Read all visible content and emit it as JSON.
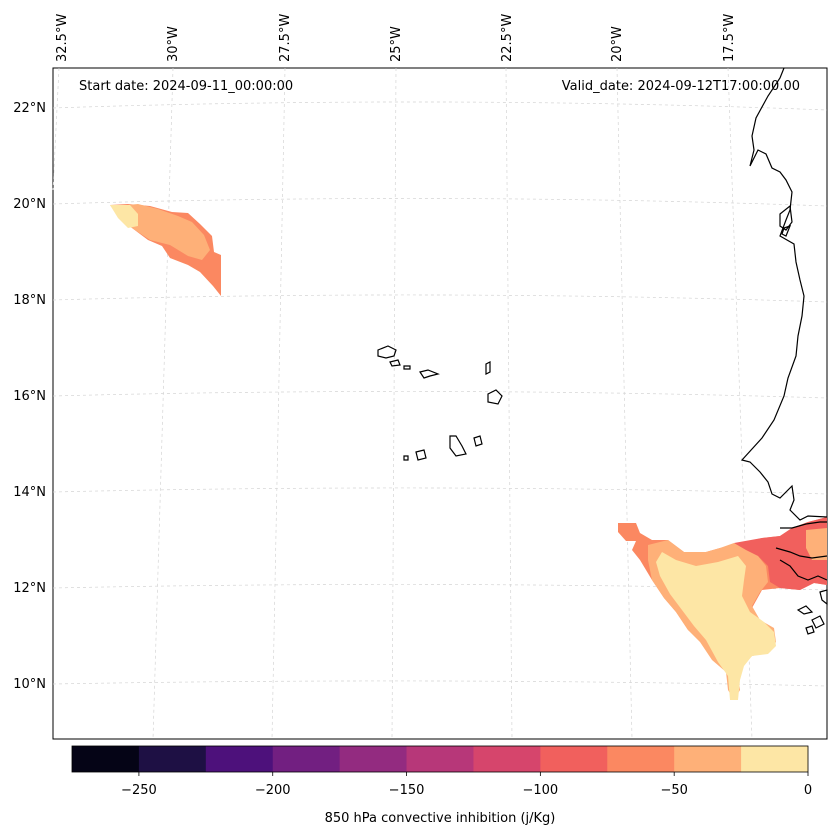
{
  "header": {
    "start_date": "Start date: 2024-09-11_00:00:00",
    "valid_date": "Valid_date: 2024-09-12T17:00:00.00"
  },
  "longitude_labels": [
    "32.5°W",
    "30°W",
    "27.5°W",
    "25°W",
    "22.5°W",
    "20°W",
    "17.5°W"
  ],
  "latitude_labels": [
    "22°N",
    "20°N",
    "18°N",
    "16°N",
    "14°N",
    "12°N",
    "10°N"
  ],
  "colorbar": {
    "label": "850 hPa convective inhibition (j/Kg)",
    "tick_labels": [
      "−250",
      "−200",
      "−150",
      "−100",
      "−50",
      "0"
    ],
    "range": [
      -275,
      0
    ],
    "bin_edges": [
      -275,
      -250,
      -225,
      -200,
      -175,
      -150,
      -125,
      -100,
      -75,
      -50,
      -25,
      0
    ],
    "colors": [
      "#050416",
      "#1e1044",
      "#4d117b",
      "#721f81",
      "#932b80",
      "#b73779",
      "#d6456c",
      "#f1605d",
      "#fb8861",
      "#feb078",
      "#fde6a5"
    ]
  },
  "map_colors": {
    "coast": "#000000",
    "grid": "#d4d4d4",
    "level_cm25_0": "#fde6a5",
    "level_cm50_cm25": "#feb078",
    "level_cm75_cm50": "#fb8861",
    "level_cm100_cm75": "#f1605d"
  }
}
